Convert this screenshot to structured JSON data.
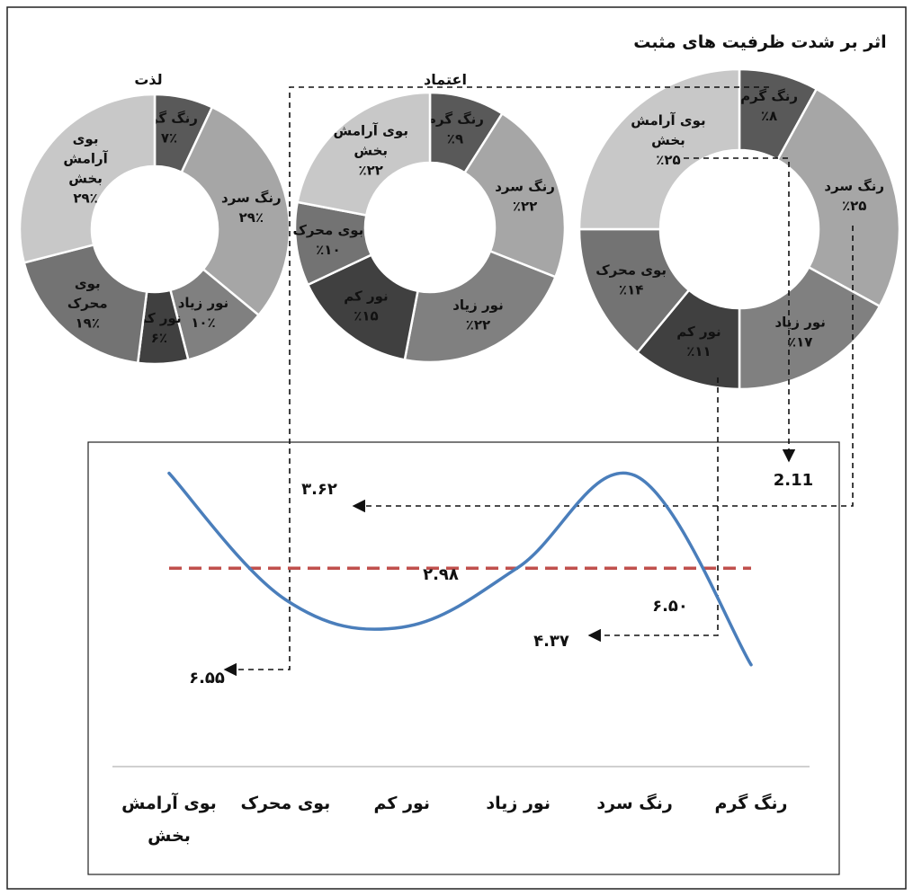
{
  "chart_data": [
    {
      "type": "pie",
      "subtype": "donut",
      "title": "لذت",
      "slices": [
        {
          "label": "رنگ گرم",
          "value_text": "۷٪",
          "value": 7,
          "color": "#595959"
        },
        {
          "label": "رنگ سرد",
          "value_text": "۲۹٪",
          "value": 29,
          "color": "#a6a6a6"
        },
        {
          "label": "نور زیاد",
          "value_text": "۱۰٪",
          "value": 10,
          "color": "#808080"
        },
        {
          "label": "نور کم",
          "value_text": "۶٪",
          "value": 6,
          "color": "#404040"
        },
        {
          "label": "بوی محرک",
          "value_text": "۱۹٪",
          "value": 19,
          "color": "#737373"
        },
        {
          "label": "بوی آرامش بخش",
          "value_text": "۲۹٪",
          "value": 29,
          "color": "#c8c8c8"
        }
      ]
    },
    {
      "type": "pie",
      "subtype": "donut",
      "title": "اعتماد",
      "slices": [
        {
          "label": "رنگ گرم",
          "value_text": "٪۹",
          "value": 9,
          "color": "#595959"
        },
        {
          "label": "رنگ سرد",
          "value_text": "٪۲۲",
          "value": 22,
          "color": "#a6a6a6"
        },
        {
          "label": "نور زیاد",
          "value_text": "٪۲۲",
          "value": 22,
          "color": "#808080"
        },
        {
          "label": "نور کم",
          "value_text": "٪۱۵",
          "value": 15,
          "color": "#404040"
        },
        {
          "label": "بوی محرک",
          "value_text": "٪۱۰",
          "value": 10,
          "color": "#737373"
        },
        {
          "label": "بوی آرامش بخش",
          "value_text": "٪۲۲",
          "value": 22,
          "color": "#c8c8c8"
        }
      ]
    },
    {
      "type": "pie",
      "subtype": "donut",
      "title": "اثر بر شدت ظرفیت های مثبت",
      "slices": [
        {
          "label": "رنگ گرم",
          "value_text": "٪۸",
          "value": 8,
          "color": "#595959"
        },
        {
          "label": "رنگ سرد",
          "value_text": "٪۲۵",
          "value": 25,
          "color": "#a6a6a6"
        },
        {
          "label": "نور زیاد",
          "value_text": "٪۱۷",
          "value": 17,
          "color": "#808080"
        },
        {
          "label": "نور کم",
          "value_text": "٪۱۱",
          "value": 11,
          "color": "#404040"
        },
        {
          "label": "بوی محرک",
          "value_text": "٪۱۴",
          "value": 14,
          "color": "#737373"
        },
        {
          "label": "بوی آرامش بخش",
          "value_text": "٪۲۵",
          "value": 25,
          "color": "#c8c8c8"
        }
      ]
    },
    {
      "type": "line",
      "smooth": true,
      "categories": [
        "رنگ گرم",
        "رنگ سرد",
        "نور زیاد",
        "نور کم",
        "بوی محرک",
        "بوی آرامش بخش"
      ],
      "series": [
        {
          "values": [
            2.11,
            6.5,
            4.37,
            2.98,
            3.62,
            6.55
          ],
          "value_labels": [
            "2.11",
            "۶.۵۰",
            "۴.۳۷",
            "۲.۹۸",
            "۳.۶۲",
            "۶.۵۵"
          ],
          "color": "#4a7ebb"
        }
      ],
      "reference_line": {
        "value": 4.35,
        "style": "dashed",
        "color": "#c0504d"
      },
      "category_order": "right-to-left"
    }
  ]
}
